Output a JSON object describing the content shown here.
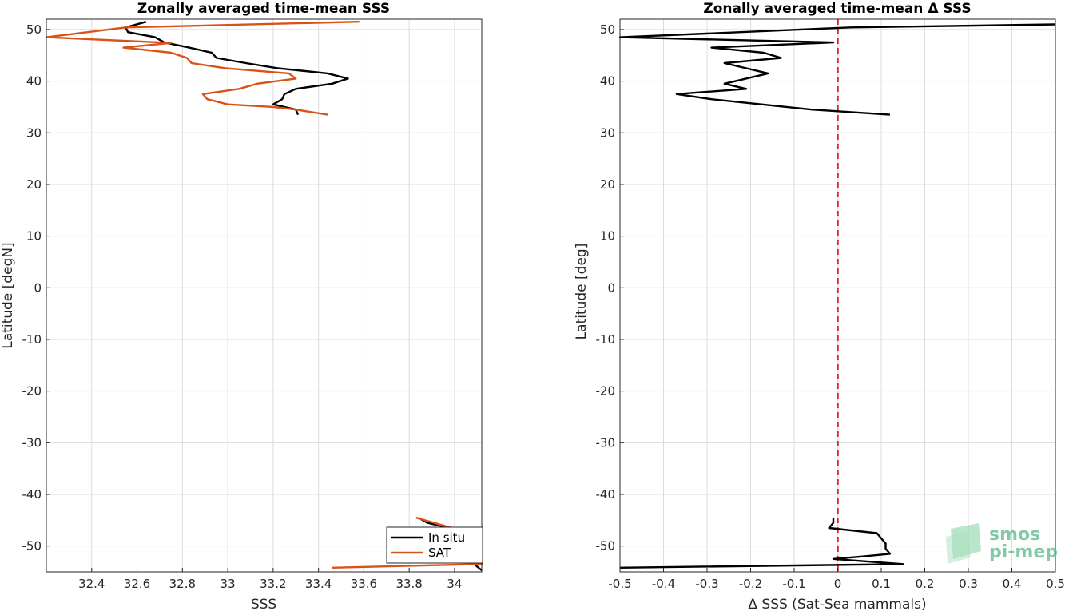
{
  "chart_data": [
    {
      "type": "line",
      "title": "Zonally averaged time-mean SSS",
      "xlabel": "SSS",
      "ylabel": "Latitude [degN]",
      "xlim": [
        32.2,
        34.12
      ],
      "ylim": [
        -55,
        52
      ],
      "xticks": [
        32.4,
        32.6,
        32.8,
        33,
        33.2,
        33.4,
        33.6,
        33.8,
        34
      ],
      "xtick_labels": [
        "32.4",
        "32.6",
        "32.8",
        "33",
        "33.2",
        "33.4",
        "33.6",
        "33.8",
        "34"
      ],
      "yticks": [
        50,
        40,
        30,
        20,
        10,
        0,
        -10,
        -20,
        -30,
        -40,
        -50
      ],
      "ytick_labels": [
        "50",
        "40",
        "30",
        "20",
        "10",
        "0",
        "-10",
        "-20",
        "-30",
        "-40",
        "-50"
      ],
      "grid": true,
      "legend_position": "bottom-right",
      "series": [
        {
          "name": "In situ",
          "color": "#000000",
          "segments": [
            [
              [
                32.64,
                51.5
              ],
              [
                32.55,
                50.4
              ],
              [
                32.56,
                49.5
              ],
              [
                32.68,
                48.5
              ],
              [
                32.72,
                47.5
              ],
              [
                32.83,
                46.5
              ],
              [
                32.93,
                45.5
              ],
              [
                32.95,
                44.5
              ],
              [
                33.08,
                43.5
              ],
              [
                33.22,
                42.5
              ],
              [
                33.44,
                41.5
              ],
              [
                33.53,
                40.5
              ],
              [
                33.46,
                39.5
              ],
              [
                33.3,
                38.5
              ],
              [
                33.25,
                37.5
              ],
              [
                33.24,
                36.5
              ],
              [
                33.2,
                35.5
              ],
              [
                33.25,
                35.0
              ],
              [
                33.3,
                34.5
              ],
              [
                33.31,
                33.5
              ]
            ],
            [
              [
                33.84,
                -44.5
              ],
              [
                33.88,
                -45.5
              ],
              [
                33.98,
                -46.5
              ],
              [
                34.06,
                -47.5
              ],
              [
                34.05,
                -48.5
              ],
              [
                34.04,
                -49.5
              ],
              [
                34.05,
                -50.5
              ],
              [
                34.04,
                -51.5
              ],
              [
                34.06,
                -52.5
              ],
              [
                34.1,
                -54.0
              ],
              [
                34.12,
                -54.7
              ]
            ]
          ]
        },
        {
          "name": "SAT",
          "color": "#d95319",
          "segments": [
            [
              [
                33.58,
                51.5
              ],
              [
                32.55,
                50.4
              ],
              [
                32.2,
                48.5
              ],
              [
                32.75,
                47.4
              ],
              [
                32.54,
                46.5
              ],
              [
                32.75,
                45.5
              ],
              [
                32.82,
                44.5
              ],
              [
                32.84,
                43.5
              ],
              [
                32.99,
                42.5
              ],
              [
                33.27,
                41.5
              ],
              [
                33.3,
                40.5
              ],
              [
                33.13,
                39.5
              ],
              [
                33.05,
                38.5
              ],
              [
                32.89,
                37.5
              ],
              [
                32.91,
                36.5
              ],
              [
                33.0,
                35.5
              ],
              [
                33.2,
                35.0
              ],
              [
                33.3,
                34.5
              ],
              [
                33.44,
                33.5
              ]
            ],
            [
              [
                33.83,
                -44.5
              ],
              [
                33.95,
                -46.0
              ],
              [
                34.06,
                -47.5
              ],
              [
                34.09,
                -48.5
              ],
              [
                34.04,
                -49.5
              ],
              [
                34.06,
                -50.5
              ],
              [
                34.03,
                -51.5
              ],
              [
                34.07,
                -52.5
              ],
              [
                34.12,
                -53.5
              ],
              [
                33.46,
                -54.2
              ]
            ]
          ]
        }
      ]
    },
    {
      "type": "line",
      "title": "Zonally averaged time-mean Δ SSS",
      "xlabel": "Δ SSS (Sat-Sea mammals)",
      "ylabel": "Latitude [deg]",
      "xlim": [
        -0.5,
        0.5
      ],
      "ylim": [
        -55,
        52
      ],
      "xticks": [
        -0.5,
        -0.4,
        -0.3,
        -0.2,
        -0.1,
        0,
        0.1,
        0.2,
        0.3,
        0.4,
        0.5
      ],
      "xtick_labels": [
        "-0.5",
        "-0.4",
        "-0.3",
        "-0.2",
        "-0.1",
        "0",
        "0.1",
        "0.2",
        "0.3",
        "0.4",
        "0.5"
      ],
      "yticks": [
        50,
        40,
        30,
        20,
        10,
        0,
        -10,
        -20,
        -30,
        -40,
        -50
      ],
      "ytick_labels": [
        "50",
        "40",
        "30",
        "20",
        "10",
        "0",
        "-10",
        "-20",
        "-30",
        "-40",
        "-50"
      ],
      "grid": true,
      "reference_line": {
        "x": 0,
        "color": "#e8201a",
        "style": "dashed"
      },
      "series": [
        {
          "color": "#000000",
          "segments": [
            [
              [
                0.5,
                51.0
              ],
              [
                0.03,
                50.4
              ],
              [
                -0.5,
                48.5
              ],
              [
                -0.01,
                47.5
              ],
              [
                -0.29,
                46.5
              ],
              [
                -0.17,
                45.5
              ],
              [
                -0.13,
                44.5
              ],
              [
                -0.26,
                43.5
              ],
              [
                -0.16,
                41.5
              ],
              [
                -0.26,
                39.5
              ],
              [
                -0.21,
                38.5
              ],
              [
                -0.37,
                37.5
              ],
              [
                -0.29,
                36.5
              ],
              [
                -0.06,
                34.5
              ],
              [
                0.12,
                33.5
              ]
            ],
            [
              [
                -0.01,
                -44.5
              ],
              [
                -0.01,
                -45.5
              ],
              [
                -0.02,
                -46.5
              ],
              [
                0.09,
                -47.5
              ],
              [
                0.1,
                -48.5
              ],
              [
                0.11,
                -49.5
              ],
              [
                0.11,
                -50.5
              ],
              [
                0.12,
                -51.5
              ],
              [
                0.06,
                -52.0
              ],
              [
                -0.01,
                -52.5
              ],
              [
                0.15,
                -53.5
              ],
              [
                -0.5,
                -54.2
              ]
            ]
          ]
        }
      ]
    }
  ],
  "logo": {
    "line1": "smos",
    "line2": "pi-mep"
  }
}
